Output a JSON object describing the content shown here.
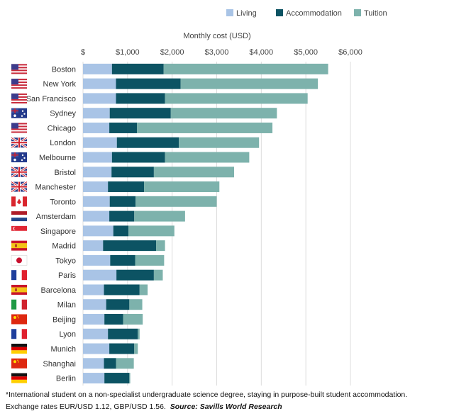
{
  "chart_data": {
    "type": "bar",
    "stacked": true,
    "orientation": "horizontal",
    "xlabel": "Monthly cost (USD)",
    "xlim": [
      0,
      6000
    ],
    "xticks": [
      0,
      1000,
      2000,
      3000,
      4000,
      5000,
      6000
    ],
    "xtick_labels": [
      "$",
      "$1,000",
      "$2,000",
      "$3,000",
      "$4,000",
      "$5,000",
      "$6,000"
    ],
    "grid": true,
    "legend_position": "top-right",
    "categories": [
      "Boston",
      "New York",
      "San Francisco",
      "Sydney",
      "Chicago",
      "London",
      "Melbourne",
      "Bristol",
      "Manchester",
      "Toronto",
      "Amsterdam",
      "Singapore",
      "Madrid",
      "Tokyo",
      "Paris",
      "Barcelona",
      "Milan",
      "Beijing",
      "Lyon",
      "Munich",
      "Shanghai",
      "Berlin"
    ],
    "flags": [
      "us",
      "us",
      "us",
      "au",
      "us",
      "uk",
      "au",
      "uk",
      "uk",
      "ca",
      "nl",
      "sg",
      "es",
      "jp",
      "fr",
      "es",
      "it",
      "cn",
      "fr",
      "de",
      "cn",
      "de"
    ],
    "series": [
      {
        "name": "Living",
        "color": "#a9c4e6",
        "values": [
          650,
          740,
          740,
          600,
          590,
          760,
          650,
          640,
          560,
          600,
          590,
          680,
          450,
          610,
          750,
          470,
          520,
          480,
          560,
          590,
          470,
          480
        ]
      },
      {
        "name": "Accommodation",
        "color": "#0c5363",
        "values": [
          1160,
          1450,
          1100,
          1370,
          620,
          1390,
          1190,
          950,
          810,
          580,
          560,
          340,
          1190,
          560,
          840,
          800,
          520,
          420,
          670,
          560,
          270,
          560
        ]
      },
      {
        "name": "Tuition",
        "color": "#7db2ac",
        "values": [
          3690,
          3080,
          3200,
          2380,
          3040,
          1800,
          1890,
          1800,
          1690,
          1820,
          1140,
          1030,
          200,
          650,
          200,
          180,
          290,
          440,
          40,
          80,
          400,
          20
        ]
      }
    ]
  },
  "footnote": {
    "line1": "*International student on a non-specialist undergraduate science degree, staying in purpose-built student accommodation.",
    "line2": "Exchange rates EUR/USD 1.12, GBP/USD 1.56.",
    "source": "Source: Savills World Research"
  }
}
